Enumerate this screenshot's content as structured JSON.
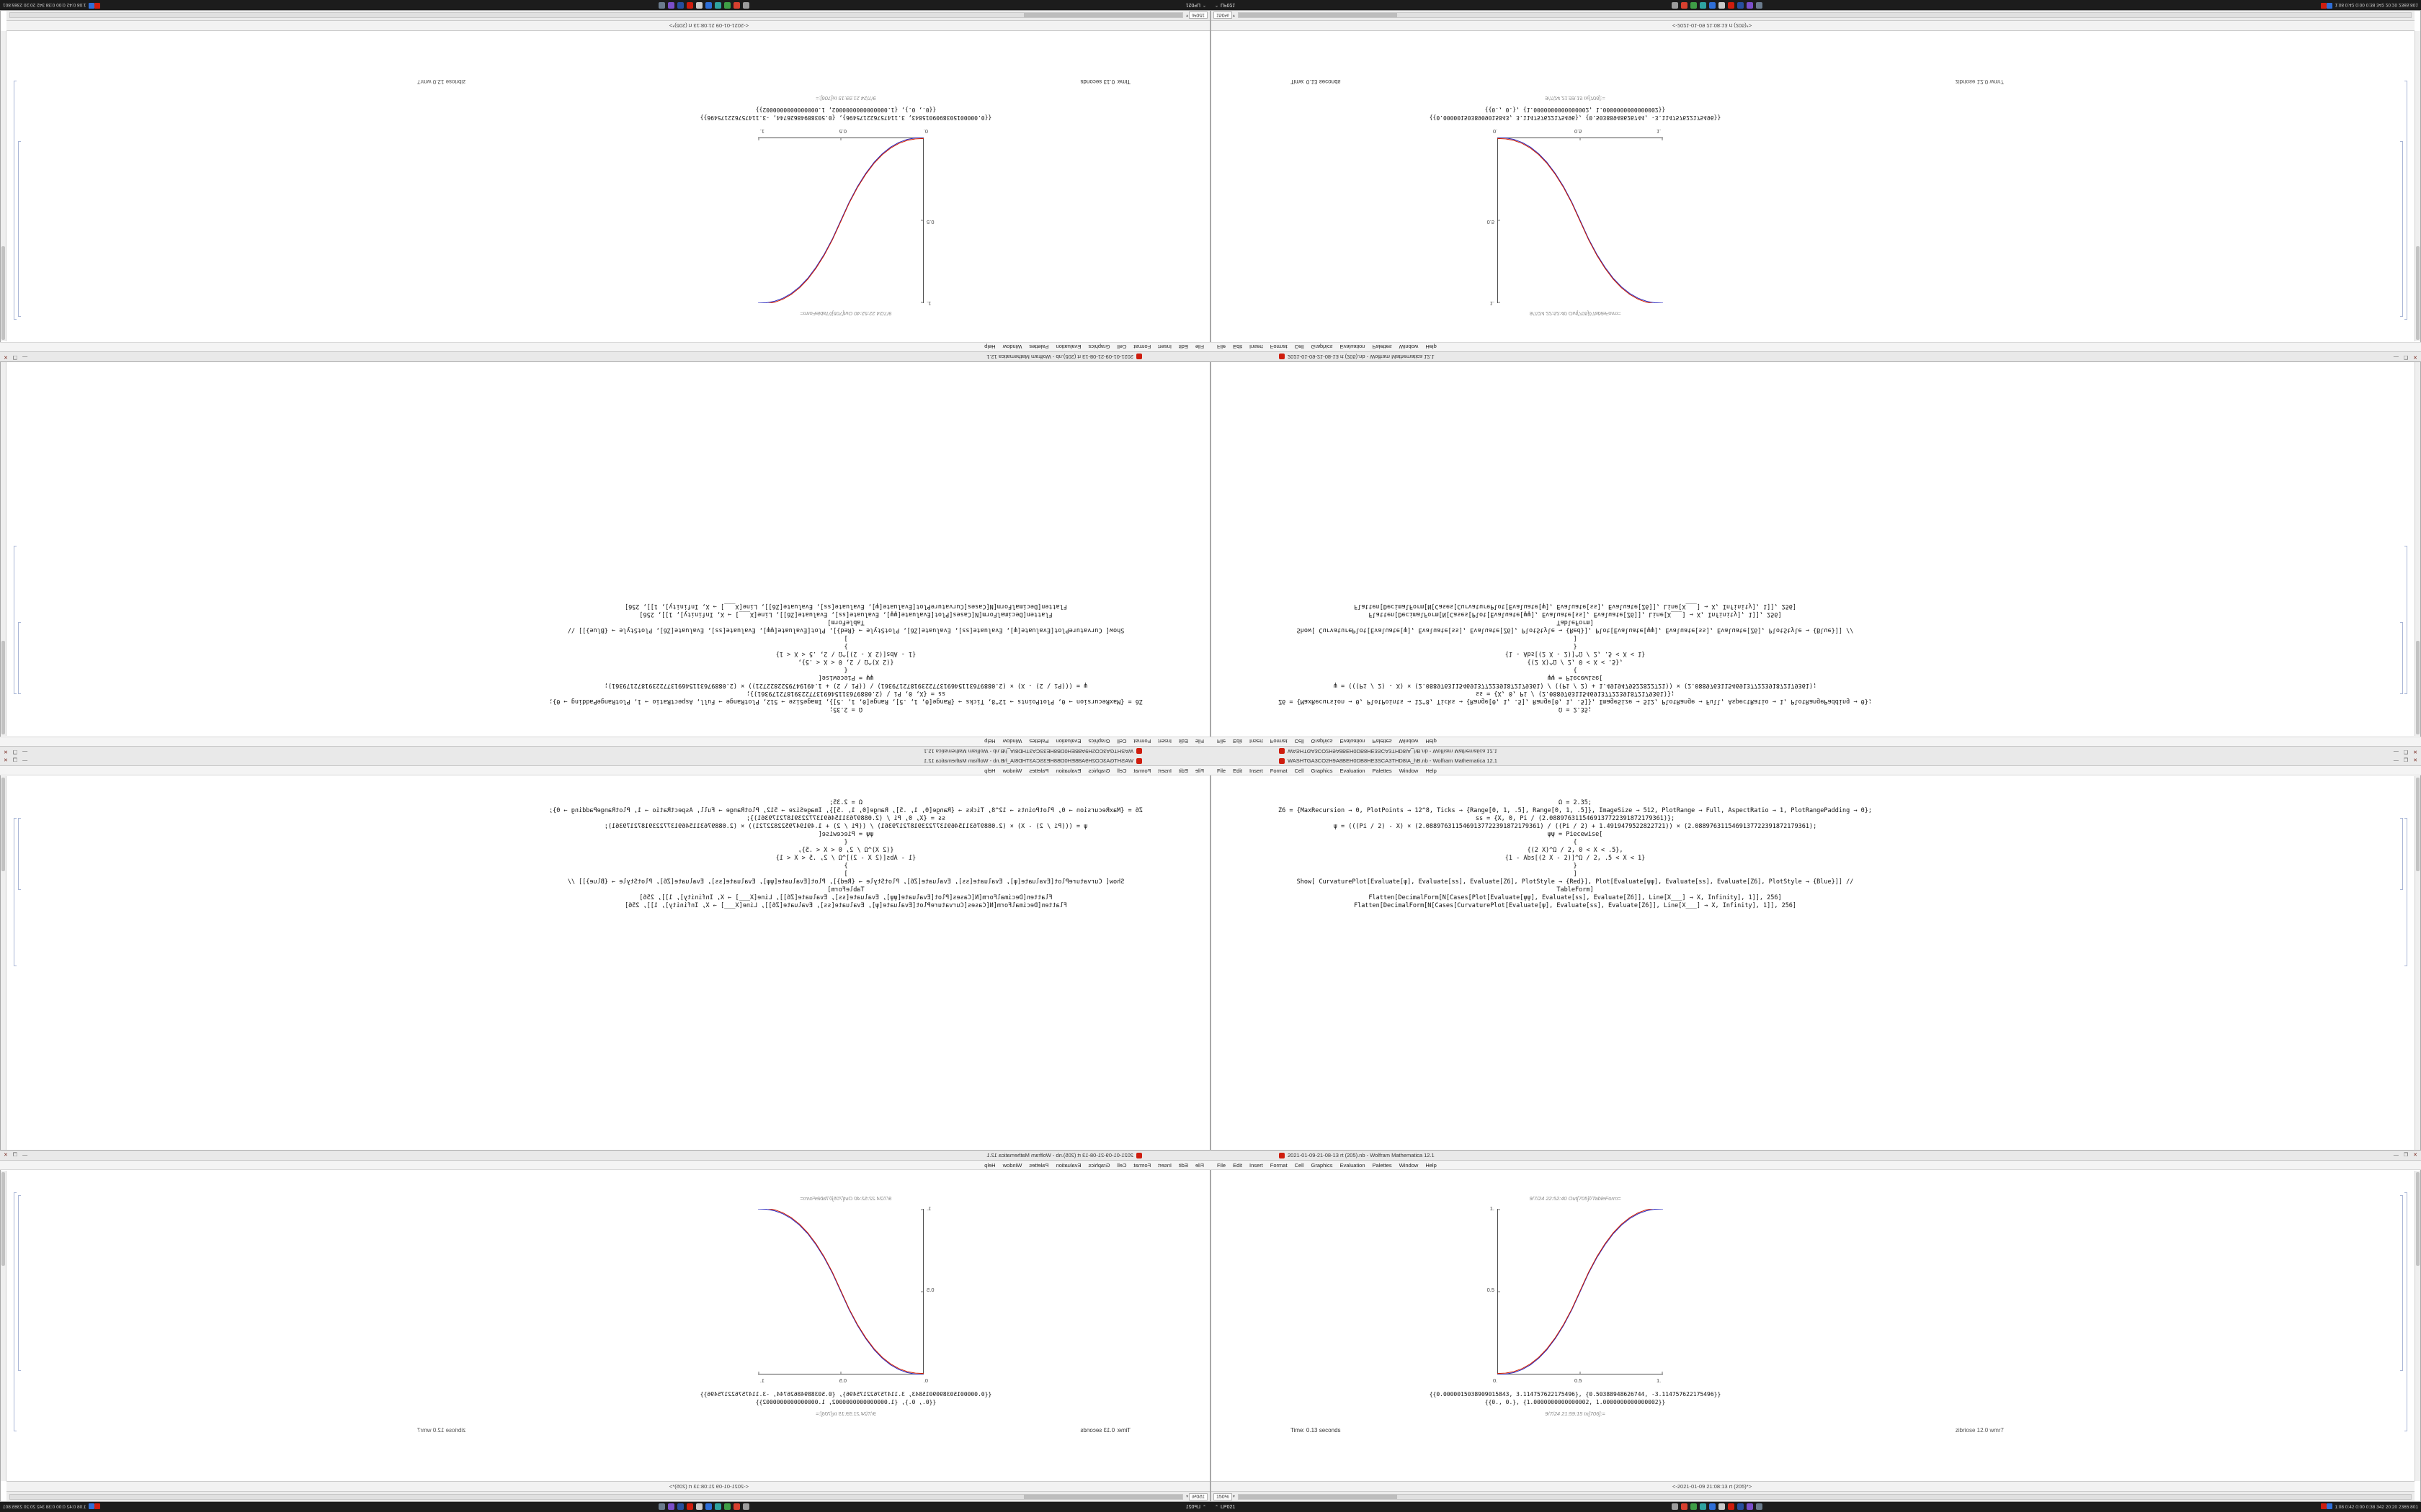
{
  "colors": {
    "accent-red": "#cf1d0e",
    "curve-red": "#d21e00",
    "curve-blue": "#2929c0",
    "taskbar-bg": "#1c1c1c",
    "titlebar-bg": "#e9e9e9",
    "menubar-bg": "#f4f4f4",
    "axis-color": "#4d4d4d"
  },
  "panels": [
    {
      "name": "top-left",
      "orientation": "rotated-180"
    },
    {
      "name": "top-right",
      "orientation": "flipped-vertical"
    },
    {
      "name": "bottom-left",
      "orientation": "flipped-horizontal"
    },
    {
      "name": "bottom-right",
      "orientation": "normal"
    }
  ],
  "menu": [
    "File",
    "Edit",
    "Insert",
    "Format",
    "Cell",
    "Graphics",
    "Evaluation",
    "Palettes",
    "Window",
    "Help"
  ],
  "windows": {
    "a": {
      "title": "WASHTGA3CO2H9A8BEH0DB8HE3SCA3THD8IA_hB.nb - Wolfram Mathematica 12.1",
      "controls": {
        "minimize": "—",
        "maximize": "❐",
        "close": "✕"
      }
    },
    "b": {
      "title": "2021-01-09-21-08-13 rt (205).nb - Wolfram Mathematica 12.1",
      "controls": {
        "minimize": "—",
        "maximize": "❐",
        "close": "✕"
      }
    }
  },
  "notebook": {
    "code_lines": [
      "Ω = 2.35;",
      "Z6 = {MaxRecursion → 0, PlotPoints → 12^8, Ticks → {Range[0, 1, .5], Range[0, 1, .5]}, ImageSize → 512, PlotRange → Full, AspectRatio → 1, PlotRangePadding → 0};",
      "ss = {X, 0, Pi / (2.0889763115469137722391872179361)};",
      "ψ = (((Pi / 2) - X) × (2.0889763115469137722391872179361) / ((Pi / 2) + 1.4919479522822721)) × (2.0889763115469137722391872179361);",
      "ψψ = Piecewise[",
      "{",
      "{(2 X)^Ω / 2, 0 < X < .5},",
      "{1 - Abs[(2 X - 2)]^Ω / 2, .5 < X < 1}",
      "}",
      "]",
      "Show[  CurvaturePlot[Evaluate[ψ], Evaluate[ss], Evaluate[Z6], PlotStyle → {Red}],  Plot[Evaluate[ψψ], Evaluate[ss], Evaluate[Z6], PlotStyle → {Blue}]] //",
      "TableForm]",
      "Flatten[DecimalForm[N[Cases[Plot[Evaluate[ψψ], Evaluate[ss], Evaluate[Z6]], Line[X___] → X, Infinity], 1]], 256]",
      "Flatten[DecimalForm[N[Cases[CurvaturePlot[Evaluate[ψ], Evaluate[ss], Evaluate[Z6]], Line[X___] → X, Infinity], 1]], 256]"
    ],
    "output": {
      "out_label": "9/7/24 22:52:40 Out[705]//TableForm=",
      "rows": [
        "{{0.0000015038909015843, 3.114757622175496}, {0.50388948626744, -3.114757622175496}}",
        "{{0., 0.}, {1.0000000000000002, 1.0000000000000002}}"
      ],
      "in_label": "9/7/24 21:59:15 In[706]:=",
      "timing_left": "Time: 0.13 seconds",
      "timing_right": "zibriose 12.0 wmr7"
    },
    "status_caption": "<-2021-01-09 21:08:13 rt (205)*>",
    "zoom": "150%"
  },
  "chart_data": {
    "type": "line",
    "title": "",
    "xlabel": "",
    "ylabel": "",
    "xlim": [
      0,
      1
    ],
    "ylim": [
      0,
      1
    ],
    "grid": false,
    "legend": "none",
    "axes_style": "axes at left and bottom, square aspect ratio",
    "x_ticks": [
      "0.",
      "0.5",
      "1."
    ],
    "y_ticks": [
      "0.5",
      "1."
    ],
    "x": [
      0,
      0.05,
      0.1,
      0.15,
      0.2,
      0.25,
      0.3,
      0.35,
      0.4,
      0.45,
      0.5,
      0.55,
      0.6,
      0.65,
      0.7,
      0.75,
      0.8,
      0.85,
      0.9,
      0.95,
      1
    ],
    "series": [
      {
        "name": "CurvaturePlot ψ (Red)",
        "color": "#d21e00",
        "values": [
          0,
          0.002,
          0.011,
          0.03,
          0.058,
          0.098,
          0.15,
          0.217,
          0.296,
          0.39,
          0.5,
          0.61,
          0.704,
          0.783,
          0.85,
          0.902,
          0.942,
          0.97,
          0.989,
          0.998,
          1
        ]
      },
      {
        "name": "Plot ψψ (Blue)",
        "color": "#2929c0",
        "values": [
          0,
          0.002,
          0.011,
          0.03,
          0.058,
          0.098,
          0.15,
          0.217,
          0.296,
          0.39,
          0.5,
          0.61,
          0.704,
          0.783,
          0.85,
          0.902,
          0.942,
          0.97,
          0.989,
          0.998,
          1
        ]
      }
    ],
    "note": "sigmoid S-curve; same curve shown in four mirrored/rotated desktop copies"
  },
  "taskbar": {
    "start_chevron": "⌃",
    "start_label": "LP021",
    "icons": [
      {
        "name": "taskbar-app-icon-gray",
        "color": "#9d9d9d"
      },
      {
        "name": "taskbar-app-icon-red",
        "color": "#d8402f"
      },
      {
        "name": "taskbar-app-icon-green",
        "color": "#3f9e46"
      },
      {
        "name": "taskbar-app-icon-teal",
        "color": "#2fa3a0"
      },
      {
        "name": "taskbar-app-icon-blue",
        "color": "#2f6fd8"
      },
      {
        "name": "taskbar-app-icon-silver",
        "color": "#c9c9c9"
      },
      {
        "name": "taskbar-app-icon-mathematica",
        "color": "#cf1d0e"
      },
      {
        "name": "taskbar-app-icon-navy",
        "color": "#274f9e"
      },
      {
        "name": "taskbar-app-icon-purple",
        "color": "#7b4fc9"
      },
      {
        "name": "taskbar-app-icon-slate",
        "color": "#6b7b8d"
      }
    ],
    "tray_icons": [
      {
        "name": "tray-icon-red",
        "color": "#cf1d0e"
      },
      {
        "name": "tray-icon-blue",
        "color": "#2f6fd8"
      }
    ],
    "tray_text": "1:08 0:42 0:00 0:38 342 20:20 2365:801"
  }
}
